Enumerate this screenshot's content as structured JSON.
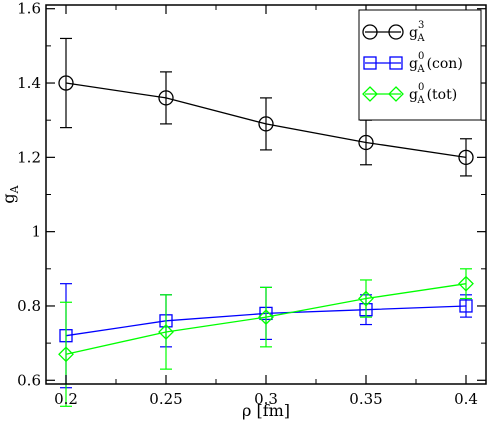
{
  "chart_data": {
    "type": "line",
    "xlabel": "ρ  [fm]",
    "ylabel": {
      "base": "g",
      "sub": "A"
    },
    "xlim": [
      0.19,
      0.41
    ],
    "ylim": [
      0.59,
      1.61
    ],
    "x_ticks": [
      0.2,
      0.25,
      0.3,
      0.35,
      0.4
    ],
    "x_tick_labels": [
      "0.2",
      "0.25",
      "0.3",
      "0.35",
      "0.4"
    ],
    "y_ticks": [
      0.6,
      0.8,
      1.0,
      1.2,
      1.4,
      1.6
    ],
    "y_tick_labels": [
      "0.6",
      "0.8",
      "1",
      "1.2",
      "1.4",
      "1.6"
    ],
    "legend_position": "top-right",
    "grid": false,
    "x": [
      0.2,
      0.25,
      0.3,
      0.35,
      0.4
    ],
    "series": [
      {
        "id": "gA3",
        "legend": {
          "base": "g",
          "sub": "A",
          "sup": "3",
          "suffix": ""
        },
        "color": "#000000",
        "marker": "circle",
        "y": [
          1.4,
          1.36,
          1.29,
          1.24,
          1.2
        ],
        "yerr": [
          0.12,
          0.07,
          0.07,
          0.06,
          0.05
        ]
      },
      {
        "id": "gA0con",
        "legend": {
          "base": "g",
          "sub": "A",
          "sup": "0",
          "suffix": "(con)"
        },
        "color": "#0000ff",
        "marker": "square",
        "y": [
          0.72,
          0.76,
          0.78,
          0.79,
          0.8
        ],
        "yerr": [
          0.14,
          0.07,
          0.07,
          0.04,
          0.03
        ]
      },
      {
        "id": "gA0tot",
        "legend": {
          "base": "g",
          "sub": "A",
          "sup": "0",
          "suffix": "(tot)"
        },
        "color": "#00ff00",
        "marker": "diamond",
        "y": [
          0.67,
          0.73,
          0.77,
          0.82,
          0.86
        ],
        "yerr": [
          0.14,
          0.1,
          0.08,
          0.05,
          0.04
        ]
      }
    ]
  }
}
